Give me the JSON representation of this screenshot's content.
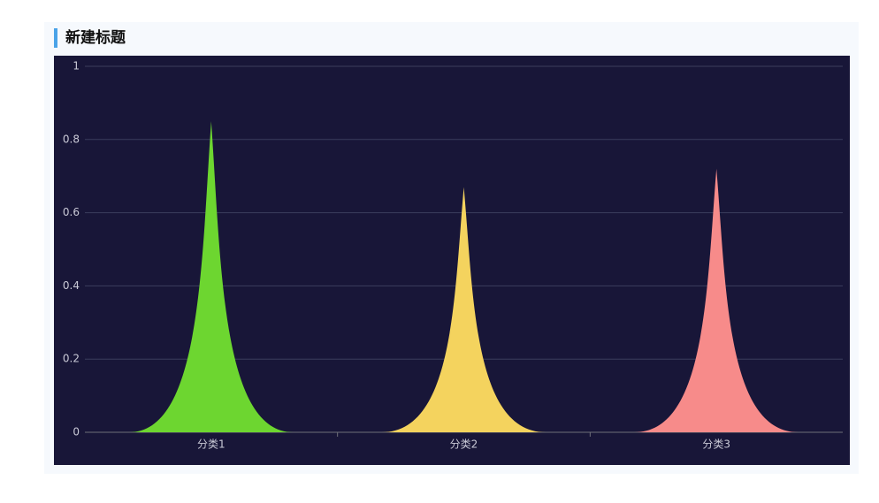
{
  "chart_data": {
    "type": "peak",
    "title": "新建标题",
    "categories": [
      "分类1",
      "分类2",
      "分类3"
    ],
    "values": [
      0.85,
      0.67,
      0.72
    ],
    "colors": [
      "#6dd630",
      "#f4d35e",
      "#f78b8a"
    ],
    "ylim": [
      0,
      1
    ],
    "yticks": [
      0,
      0.2,
      0.4,
      0.6,
      0.8,
      1
    ],
    "grid": true
  }
}
